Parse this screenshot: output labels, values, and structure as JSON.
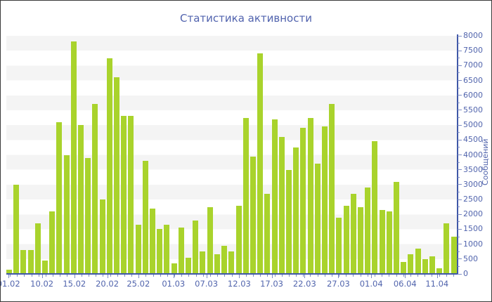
{
  "title": "Статистика активности",
  "colors": {
    "bar": "#a9d32c",
    "axis": "#3f57a7",
    "tick": "#7c8cc4",
    "label": "#5265ad",
    "stripe": "#f4f4f4",
    "background": "#ffffff"
  },
  "chart_data": {
    "type": "bar",
    "title": "Статистика активности",
    "xlabel": "",
    "ylabel": "Сообщений",
    "ylim": [
      0,
      8000
    ],
    "y_major_step": 500,
    "y_minor_step": 250,
    "grid": "striped-bands",
    "legend": "none",
    "y_tick_labels": [
      "0",
      "500",
      "1000",
      "1500",
      "2000",
      "2500",
      "3000",
      "3500",
      "4000",
      "4500",
      "5000",
      "5500",
      "6000",
      "6500",
      "7000",
      "7500",
      "8000"
    ],
    "x_labels": [
      {
        "text": "01.02",
        "pos_pct": 0.5
      },
      {
        "text": "10.02",
        "pos_pct": 7.9
      },
      {
        "text": "15.02",
        "pos_pct": 15.1
      },
      {
        "text": "20.02",
        "pos_pct": 22.4
      },
      {
        "text": "25.02",
        "pos_pct": 29.3
      },
      {
        "text": "01.03",
        "pos_pct": 37.1
      },
      {
        "text": "07.03",
        "pos_pct": 44.4
      },
      {
        "text": "12.03",
        "pos_pct": 51.7
      },
      {
        "text": "17.03",
        "pos_pct": 58.9
      },
      {
        "text": "22.03",
        "pos_pct": 66.2
      },
      {
        "text": "27.03",
        "pos_pct": 73.7
      },
      {
        "text": "01.04",
        "pos_pct": 81.0
      },
      {
        "text": "06.04",
        "pos_pct": 88.5
      },
      {
        "text": "11.04",
        "pos_pct": 95.6
      }
    ],
    "values": [
      150,
      3000,
      800,
      800,
      1700,
      450,
      2100,
      5100,
      4000,
      7800,
      5000,
      3900,
      5700,
      2500,
      7250,
      6600,
      5300,
      5300,
      1650,
      3800,
      2200,
      1500,
      1650,
      350,
      1550,
      550,
      1800,
      750,
      2250,
      650,
      950,
      750,
      2300,
      5250,
      3950,
      7400,
      2700,
      5200,
      4600,
      3500,
      4250,
      4900,
      5250,
      3700,
      4950,
      5700,
      1900,
      2300,
      2700,
      2250,
      2900,
      4450,
      2150,
      2100,
      3100,
      400,
      650,
      850,
      500,
      600,
      200,
      1700,
      1250
    ]
  }
}
